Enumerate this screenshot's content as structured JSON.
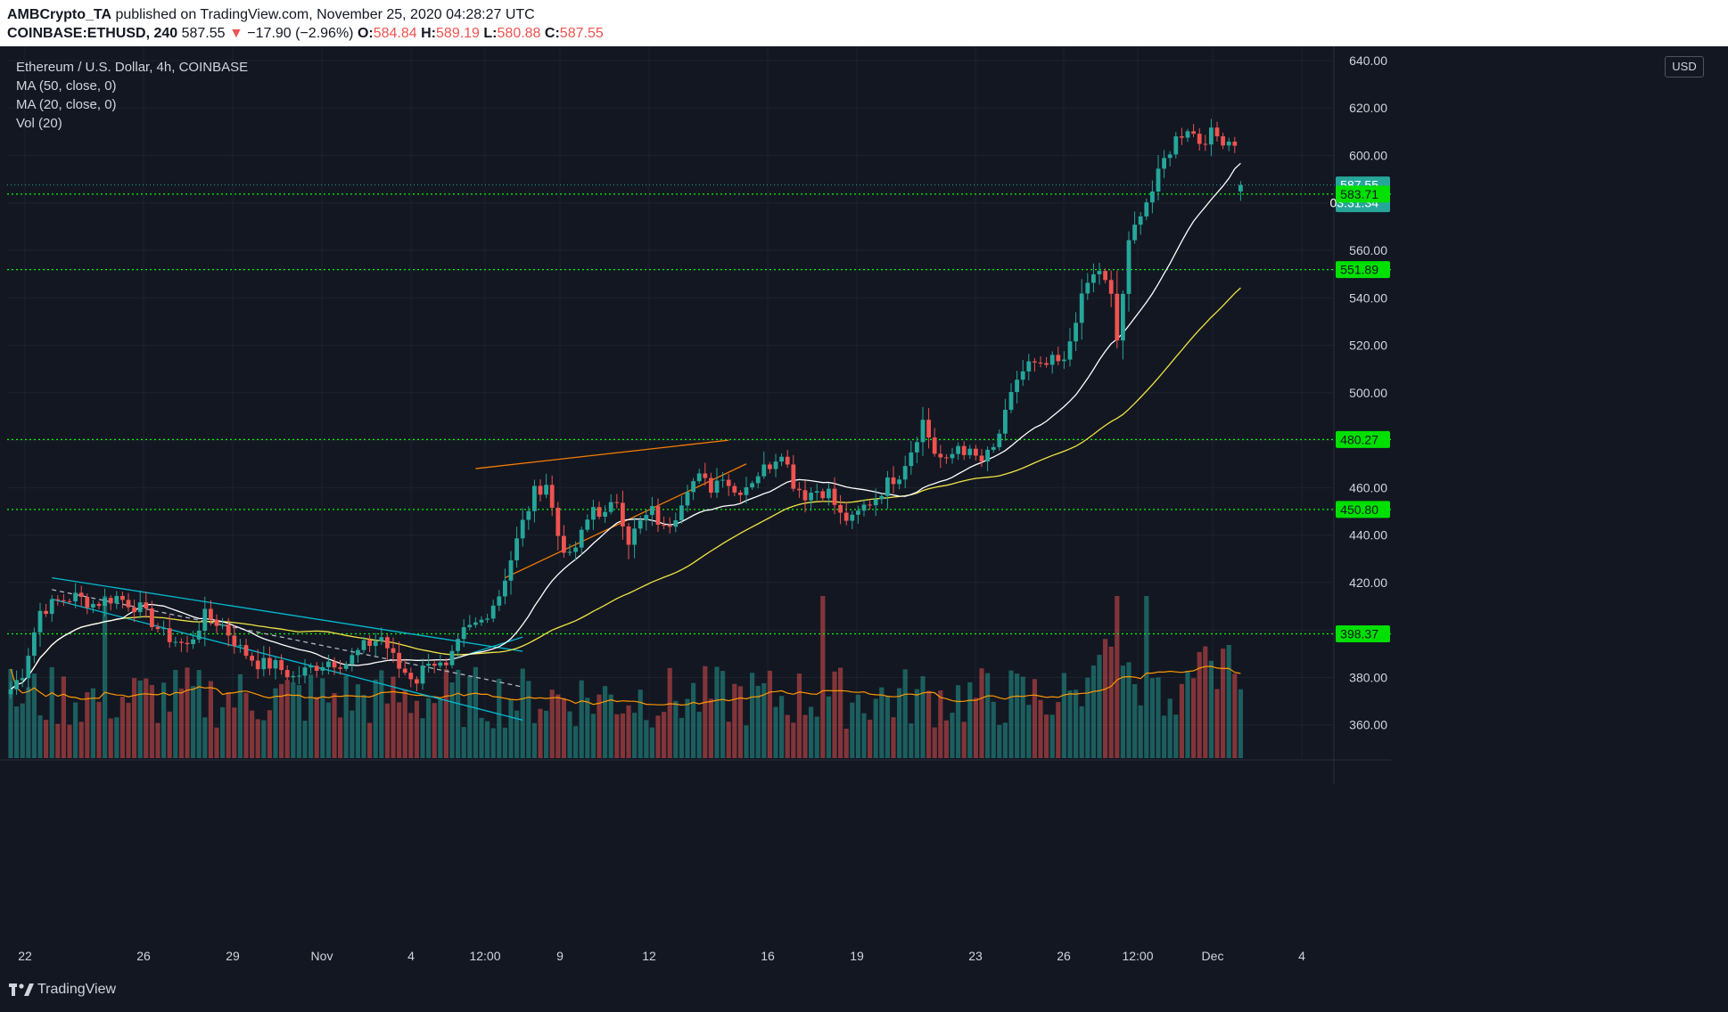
{
  "header": {
    "author": "AMBCrypto_TA",
    "published_text": "published on TradingView.com, November 25, 2020 04:28:27 UTC",
    "symbol": "COINBASE:ETHUSD, 240",
    "last": "587.55",
    "change_arrow": "▼",
    "change": "−17.90 (−2.96%)",
    "o_label": "O:",
    "o_value": "584.84",
    "h_label": "H:",
    "h_value": "589.19",
    "l_label": "L:",
    "l_value": "580.88",
    "c_label": "C:",
    "c_value": "587.55"
  },
  "legend": {
    "title": "Ethereum / U.S. Dollar, 4h, COINBASE",
    "ma50": "MA (50, close, 0)",
    "ma20": "MA (20, close, 0)",
    "vol": "Vol (20)"
  },
  "currency_button": "USD",
  "footer": {
    "brand": "TradingView"
  },
  "colors": {
    "background": "#131722",
    "up": "#26a69a",
    "down": "#ef5350",
    "ma20": "#ffffff",
    "ma50": "#f0e442",
    "vol_ma": "#ff9800",
    "level": "#00ff00",
    "channel": "#00bcd4",
    "wedge": "#f57c00"
  },
  "chart_data": {
    "type": "candlestick",
    "title": "Ethereum / U.S. Dollar, 4h, COINBASE",
    "y_axis": {
      "ticks": [
        360,
        380,
        400,
        420,
        440,
        460,
        480,
        500,
        520,
        540,
        560,
        580,
        600,
        620,
        640
      ],
      "ylim": [
        346,
        646
      ],
      "position": "right"
    },
    "x_axis": {
      "ticks": [
        "22",
        "26",
        "29",
        "Nov",
        "4",
        "12:00",
        "9",
        "12",
        "16",
        "19",
        "23",
        "26",
        "12:00",
        "Dec",
        "4"
      ]
    },
    "price_labels": [
      {
        "value": 587.55,
        "text": "587.55",
        "kind": "last",
        "countdown": "03:31:34"
      },
      {
        "value": 583.71,
        "text": "583.71",
        "kind": "level"
      },
      {
        "value": 551.89,
        "text": "551.89",
        "kind": "level"
      },
      {
        "value": 480.27,
        "text": "480.27",
        "kind": "level"
      },
      {
        "value": 450.8,
        "text": "450.80",
        "kind": "level"
      },
      {
        "value": 398.37,
        "text": "398.37",
        "kind": "level"
      }
    ],
    "horizontal_levels": [
      583.71,
      551.89,
      480.27,
      450.8,
      398.37
    ],
    "anchors": [
      {
        "bar": 0,
        "price": 375
      },
      {
        "bar": 2,
        "price": 382
      },
      {
        "bar": 5,
        "price": 408
      },
      {
        "bar": 8,
        "price": 412
      },
      {
        "bar": 11,
        "price": 414
      },
      {
        "bar": 14,
        "price": 411
      },
      {
        "bar": 18,
        "price": 414
      },
      {
        "bar": 22,
        "price": 409
      },
      {
        "bar": 26,
        "price": 398
      },
      {
        "bar": 30,
        "price": 393
      },
      {
        "bar": 33,
        "price": 406
      },
      {
        "bar": 36,
        "price": 402
      },
      {
        "bar": 39,
        "price": 392
      },
      {
        "bar": 42,
        "price": 386
      },
      {
        "bar": 45,
        "price": 385
      },
      {
        "bar": 48,
        "price": 380
      },
      {
        "bar": 51,
        "price": 384
      },
      {
        "bar": 54,
        "price": 387
      },
      {
        "bar": 57,
        "price": 386
      },
      {
        "bar": 60,
        "price": 393
      },
      {
        "bar": 63,
        "price": 397
      },
      {
        "bar": 66,
        "price": 384
      },
      {
        "bar": 69,
        "price": 379
      },
      {
        "bar": 71,
        "price": 388
      },
      {
        "bar": 74,
        "price": 383
      },
      {
        "bar": 77,
        "price": 399
      },
      {
        "bar": 80,
        "price": 404
      },
      {
        "bar": 83,
        "price": 415
      },
      {
        "bar": 85,
        "price": 430
      },
      {
        "bar": 87,
        "price": 445
      },
      {
        "bar": 89,
        "price": 458
      },
      {
        "bar": 91,
        "price": 462
      },
      {
        "bar": 93,
        "price": 440
      },
      {
        "bar": 95,
        "price": 430
      },
      {
        "bar": 97,
        "price": 440
      },
      {
        "bar": 99,
        "price": 452
      },
      {
        "bar": 101,
        "price": 448
      },
      {
        "bar": 103,
        "price": 455
      },
      {
        "bar": 105,
        "price": 438
      },
      {
        "bar": 107,
        "price": 445
      },
      {
        "bar": 109,
        "price": 450
      },
      {
        "bar": 111,
        "price": 442
      },
      {
        "bar": 113,
        "price": 449
      },
      {
        "bar": 115,
        "price": 461
      },
      {
        "bar": 117,
        "price": 464
      },
      {
        "bar": 119,
        "price": 460
      },
      {
        "bar": 121,
        "price": 466
      },
      {
        "bar": 123,
        "price": 458
      },
      {
        "bar": 125,
        "price": 461
      },
      {
        "bar": 127,
        "price": 466
      },
      {
        "bar": 129,
        "price": 470
      },
      {
        "bar": 131,
        "price": 476
      },
      {
        "bar": 133,
        "price": 462
      },
      {
        "bar": 135,
        "price": 457
      },
      {
        "bar": 137,
        "price": 459
      },
      {
        "bar": 139,
        "price": 458
      },
      {
        "bar": 141,
        "price": 448
      },
      {
        "bar": 143,
        "price": 446
      },
      {
        "bar": 145,
        "price": 452
      },
      {
        "bar": 147,
        "price": 456
      },
      {
        "bar": 149,
        "price": 462
      },
      {
        "bar": 151,
        "price": 466
      },
      {
        "bar": 153,
        "price": 476
      },
      {
        "bar": 155,
        "price": 488
      },
      {
        "bar": 157,
        "price": 475
      },
      {
        "bar": 159,
        "price": 470
      },
      {
        "bar": 161,
        "price": 478
      },
      {
        "bar": 163,
        "price": 474
      },
      {
        "bar": 165,
        "price": 471
      },
      {
        "bar": 167,
        "price": 476
      },
      {
        "bar": 169,
        "price": 490
      },
      {
        "bar": 171,
        "price": 506
      },
      {
        "bar": 173,
        "price": 512
      },
      {
        "bar": 175,
        "price": 510
      },
      {
        "bar": 177,
        "price": 513
      },
      {
        "bar": 179,
        "price": 512
      },
      {
        "bar": 181,
        "price": 532
      },
      {
        "bar": 183,
        "price": 546
      },
      {
        "bar": 185,
        "price": 552
      },
      {
        "bar": 187,
        "price": 540
      },
      {
        "bar": 188,
        "price": 522
      },
      {
        "bar": 190,
        "price": 562
      },
      {
        "bar": 192,
        "price": 577
      },
      {
        "bar": 194,
        "price": 585
      },
      {
        "bar": 196,
        "price": 598
      },
      {
        "bar": 198,
        "price": 607
      },
      {
        "bar": 200,
        "price": 612
      },
      {
        "bar": 202,
        "price": 606
      },
      {
        "bar": 204,
        "price": 609
      },
      {
        "bar": 206,
        "price": 607
      },
      {
        "bar": 208,
        "price": 606
      },
      {
        "bar": 209,
        "price": 587.55
      }
    ],
    "series": [
      {
        "name": "MA (50, close, 0)",
        "color": "#f0e442"
      },
      {
        "name": "MA (20, close, 0)",
        "color": "#ffffff"
      },
      {
        "name": "Vol (20)",
        "color": "#ff9800"
      }
    ]
  }
}
